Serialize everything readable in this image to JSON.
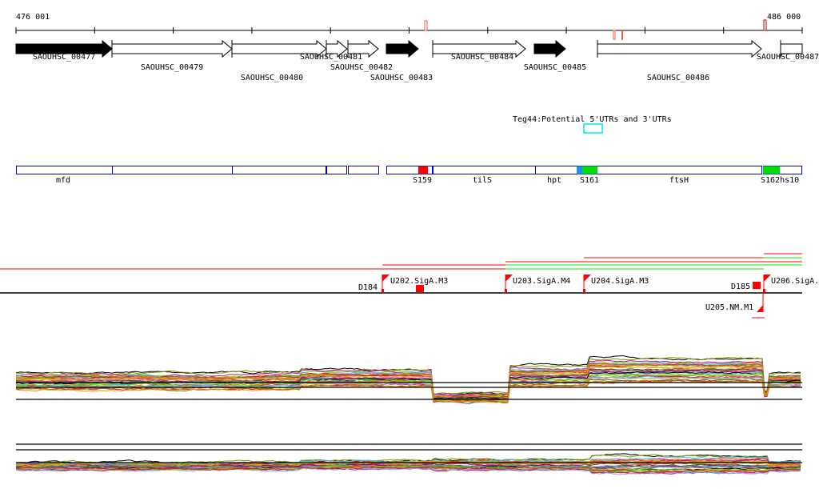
{
  "ruler": {
    "start_label": "476 001",
    "end_label": "486 000"
  },
  "genes": [
    {
      "id": "SAOUHSC_00477",
      "strand": "minus-filled"
    },
    {
      "id": "SAOUHSC_00479",
      "strand": "plus"
    },
    {
      "id": "SAOUHSC_00480",
      "strand": "plus"
    },
    {
      "id": "SAOUHSC_00481",
      "strand": "plus"
    },
    {
      "id": "SAOUHSC_00482",
      "strand": "plus"
    },
    {
      "id": "SAOUHSC_00483",
      "strand": "minus-filled"
    },
    {
      "id": "SAOUHSC_00484",
      "strand": "plus"
    },
    {
      "id": "SAOUHSC_00485",
      "strand": "minus-filled"
    },
    {
      "id": "SAOUHSC_00486",
      "strand": "plus"
    },
    {
      "id": "SAOUHSC_00487",
      "strand": "plus"
    }
  ],
  "teg": {
    "label": "Teg44:Potential 5'UTRs and 3'UTRs",
    "color": "#00e5ee"
  },
  "annotations": {
    "labels": [
      "mfd",
      "S159",
      "tilS",
      "hpt",
      "S161",
      "ftsH",
      "S162hs10"
    ],
    "colors": {
      "box": "#0000ee",
      "red": "#ff0000",
      "green": "#00dd00",
      "blue": "#1e90ff"
    }
  },
  "promoters": {
    "flags": [
      "U202.SigA.M3",
      "U203.SigA.M4",
      "U204.SigA.M3",
      "U206.SigA.",
      "U205.NM.M1"
    ],
    "terminators": [
      "D184",
      "D185"
    ]
  },
  "colors": {
    "accent": "#ff0000",
    "green": "#00ff00"
  }
}
